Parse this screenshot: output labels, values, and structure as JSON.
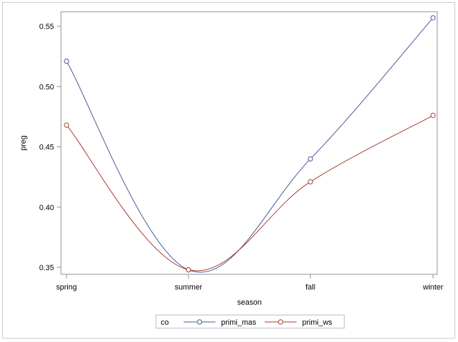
{
  "chart_data": {
    "type": "line",
    "categories": [
      "spring",
      "summer",
      "fall",
      "winter"
    ],
    "xlabel": "season",
    "ylabel": "preg",
    "ylim": [
      0.345,
      0.562
    ],
    "yticks": [
      0.35,
      0.4,
      0.45,
      0.5,
      0.55
    ],
    "ytick_labels": [
      "0.35",
      "0.40",
      "0.45",
      "0.50",
      "0.55"
    ],
    "grid": false,
    "legend": {
      "title": "co",
      "placement": "bottom",
      "entries": [
        "primi_mas",
        "primi_ws"
      ]
    },
    "series": [
      {
        "name": "primi_mas",
        "color": "#445694",
        "values": [
          0.521,
          0.348,
          0.44,
          0.557
        ]
      },
      {
        "name": "primi_ws",
        "color": "#a23a2e",
        "values": [
          0.468,
          0.348,
          0.421,
          0.476
        ]
      }
    ]
  }
}
